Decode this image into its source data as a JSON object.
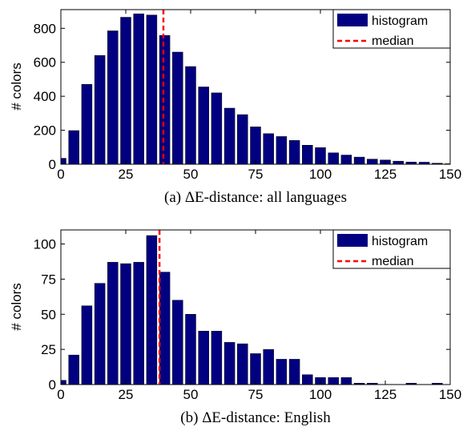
{
  "colors": {
    "bar": "#000080",
    "median": "#ff0000",
    "axis": "#000000"
  },
  "chart_data": [
    {
      "type": "bar",
      "caption": "(a) ΔE-distance: all languages",
      "ylabel": "# colors",
      "xlim": [
        0,
        150
      ],
      "ylim": [
        0,
        910
      ],
      "xticks": [
        0,
        25,
        50,
        75,
        100,
        125,
        150
      ],
      "yticks": [
        0,
        200,
        400,
        600,
        800
      ],
      "bin_width": 5,
      "bin_centers": [
        0,
        5,
        10,
        15,
        20,
        25,
        30,
        35,
        40,
        45,
        50,
        55,
        60,
        65,
        70,
        75,
        80,
        85,
        90,
        95,
        100,
        105,
        110,
        115,
        120,
        125,
        130,
        135,
        140,
        145,
        150
      ],
      "values": [
        35,
        198,
        470,
        640,
        785,
        865,
        885,
        878,
        758,
        660,
        575,
        455,
        420,
        330,
        292,
        220,
        180,
        163,
        140,
        112,
        98,
        67,
        54,
        42,
        30,
        25,
        18,
        13,
        12,
        6,
        3
      ],
      "median": 39.5,
      "legend": [
        "histogram",
        "median"
      ]
    },
    {
      "type": "bar",
      "caption": "(b) ΔE-distance: English",
      "ylabel": "# colors",
      "xlim": [
        0,
        150
      ],
      "ylim": [
        0,
        110
      ],
      "xticks": [
        0,
        25,
        50,
        75,
        100,
        125,
        150
      ],
      "yticks": [
        0,
        25,
        50,
        75,
        100
      ],
      "bin_width": 5,
      "bin_centers": [
        0,
        5,
        10,
        15,
        20,
        25,
        30,
        35,
        40,
        45,
        50,
        55,
        60,
        65,
        70,
        75,
        80,
        85,
        90,
        95,
        100,
        105,
        110,
        115,
        120,
        125,
        130,
        135,
        140,
        145,
        150
      ],
      "values": [
        3,
        21,
        56,
        72,
        87,
        86,
        87,
        106,
        80,
        60,
        50,
        38,
        38,
        30,
        29,
        22,
        25,
        18,
        18,
        7,
        5,
        5,
        5,
        1,
        1,
        0,
        0,
        1,
        0,
        1,
        0
      ],
      "median": 38,
      "legend": [
        "histogram",
        "median"
      ]
    }
  ]
}
